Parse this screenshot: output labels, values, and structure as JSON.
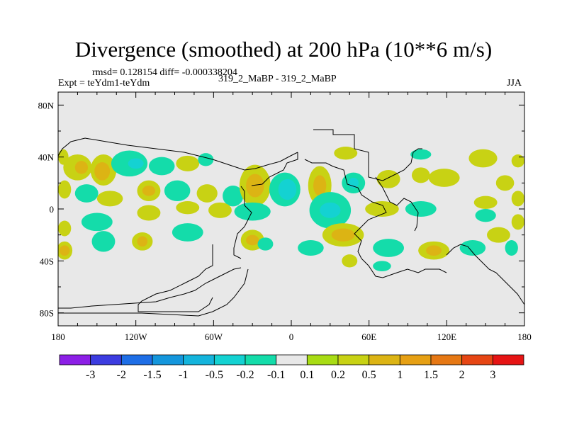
{
  "figure": {
    "title": "Divergence (smoothed) at 200 hPa (10**6 m/s)",
    "stats": "rmsd= 0.128154  diff= -0.000338204",
    "left_label": "Expt = teYdm1-teYdm",
    "center_label": "319_2_MaBP - 319_2_MaBP",
    "right_label": "JJA"
  },
  "chart_data": {
    "type": "heatmap",
    "title": "Divergence (smoothed) at 200 hPa (10**6 m/s)",
    "x_range": [
      -180,
      180
    ],
    "y_range": [
      -90,
      90
    ],
    "x_ticks": [
      {
        "value": -180,
        "label": "180"
      },
      {
        "value": -120,
        "label": "120W"
      },
      {
        "value": -60,
        "label": "60W"
      },
      {
        "value": 0,
        "label": "0"
      },
      {
        "value": 60,
        "label": "60E"
      },
      {
        "value": 120,
        "label": "120E"
      },
      {
        "value": 180,
        "label": "180"
      }
    ],
    "y_ticks": [
      {
        "value": 80,
        "label": "80N"
      },
      {
        "value": 40,
        "label": "40N"
      },
      {
        "value": 0,
        "label": "0"
      },
      {
        "value": -40,
        "label": "40S"
      },
      {
        "value": -80,
        "label": "80S"
      }
    ],
    "colorbar": {
      "colors": [
        "#8c1fe6",
        "#3c3ce0",
        "#1e6ee6",
        "#1496dc",
        "#14b4dc",
        "#14d2d2",
        "#14dcaa",
        "#e8e8e8",
        "#a8dc14",
        "#c8d214",
        "#dcb414",
        "#e6a014",
        "#e67814",
        "#e64614",
        "#e61414"
      ],
      "labels": [
        "-3",
        "-2",
        "-1.5",
        "-1",
        "-0.5",
        "-0.2",
        "-0.1",
        "0.1",
        "0.2",
        "0.5",
        "1",
        "1.5",
        "2",
        "3"
      ]
    },
    "blobs": [
      {
        "lon": -176,
        "lat": 40,
        "w": 4,
        "h": 6,
        "v": 0.2
      },
      {
        "lon": -165,
        "lat": 32,
        "w": 11,
        "h": 10,
        "v": 0.2
      },
      {
        "lon": -162,
        "lat": 32,
        "w": 5,
        "h": 5,
        "v": 0.5
      },
      {
        "lon": -145,
        "lat": 30,
        "w": 10,
        "h": 12,
        "v": 0.2
      },
      {
        "lon": -146,
        "lat": 29,
        "w": 6,
        "h": 7,
        "v": 0.5
      },
      {
        "lon": -125,
        "lat": 35,
        "w": 14,
        "h": 10,
        "v": -0.2
      },
      {
        "lon": -120,
        "lat": 35,
        "w": 6,
        "h": 4,
        "v": -0.5
      },
      {
        "lon": -100,
        "lat": 33,
        "w": 10,
        "h": 7,
        "v": -0.2
      },
      {
        "lon": -80,
        "lat": 35,
        "w": 9,
        "h": 6,
        "v": 0.2
      },
      {
        "lon": -66,
        "lat": 38,
        "w": 6,
        "h": 5,
        "v": -0.2
      },
      {
        "lon": -175,
        "lat": 15,
        "w": 5,
        "h": 7,
        "v": 0.2
      },
      {
        "lon": -158,
        "lat": 12,
        "w": 9,
        "h": 7,
        "v": -0.2
      },
      {
        "lon": -140,
        "lat": 8,
        "w": 10,
        "h": 6,
        "v": 0.2
      },
      {
        "lon": -110,
        "lat": 14,
        "w": 9,
        "h": 8,
        "v": 0.2
      },
      {
        "lon": -110,
        "lat": 14,
        "w": 5,
        "h": 4,
        "v": 0.5
      },
      {
        "lon": -88,
        "lat": 14,
        "w": 10,
        "h": 8,
        "v": -0.2
      },
      {
        "lon": -65,
        "lat": 12,
        "w": 8,
        "h": 7,
        "v": 0.2
      },
      {
        "lon": -45,
        "lat": 10,
        "w": 8,
        "h": 8,
        "v": -0.2
      },
      {
        "lon": -28,
        "lat": 18,
        "w": 12,
        "h": 16,
        "v": 0.2
      },
      {
        "lon": -28,
        "lat": 18,
        "w": 7,
        "h": 9,
        "v": 0.5
      },
      {
        "lon": -5,
        "lat": 15,
        "w": 12,
        "h": 13,
        "v": -0.2
      },
      {
        "lon": -3,
        "lat": 15,
        "w": 7,
        "h": 8,
        "v": -0.5
      },
      {
        "lon": 22,
        "lat": 18,
        "w": 9,
        "h": 15,
        "v": 0.2
      },
      {
        "lon": 22,
        "lat": 18,
        "w": 5,
        "h": 8,
        "v": 0.5
      },
      {
        "lon": 42,
        "lat": 43,
        "w": 9,
        "h": 5,
        "v": 0.2
      },
      {
        "lon": 48,
        "lat": 20,
        "w": 9,
        "h": 8,
        "v": -0.2
      },
      {
        "lon": 48,
        "lat": 20,
        "w": 4,
        "h": 4,
        "v": -0.5
      },
      {
        "lon": 75,
        "lat": 23,
        "w": 9,
        "h": 7,
        "v": 0.2
      },
      {
        "lon": 100,
        "lat": 26,
        "w": 7,
        "h": 6,
        "v": 0.2
      },
      {
        "lon": 100,
        "lat": 42,
        "w": 8,
        "h": 4,
        "v": -0.2
      },
      {
        "lon": 118,
        "lat": 24,
        "w": 12,
        "h": 7,
        "v": 0.2
      },
      {
        "lon": 148,
        "lat": 39,
        "w": 11,
        "h": 7,
        "v": 0.2
      },
      {
        "lon": 165,
        "lat": 20,
        "w": 7,
        "h": 6,
        "v": 0.2
      },
      {
        "lon": 175,
        "lat": 37,
        "w": 5,
        "h": 5,
        "v": 0.2
      },
      {
        "lon": 175,
        "lat": 8,
        "w": 5,
        "h": 6,
        "v": 0.2
      },
      {
        "lon": 150,
        "lat": 5,
        "w": 9,
        "h": 5,
        "v": 0.2
      },
      {
        "lon": 100,
        "lat": 0,
        "w": 12,
        "h": 6,
        "v": -0.2
      },
      {
        "lon": 70,
        "lat": 0,
        "w": 13,
        "h": 6,
        "v": 0.2
      },
      {
        "lon": 30,
        "lat": -1,
        "w": 16,
        "h": 14,
        "v": -0.2
      },
      {
        "lon": 30,
        "lat": -1,
        "w": 8,
        "h": 6,
        "v": -0.5
      },
      {
        "lon": -30,
        "lat": -2,
        "w": 14,
        "h": 7,
        "v": -0.2
      },
      {
        "lon": -55,
        "lat": -1,
        "w": 9,
        "h": 6,
        "v": 0.2
      },
      {
        "lon": -80,
        "lat": 1,
        "w": 9,
        "h": 5,
        "v": 0.2
      },
      {
        "lon": -110,
        "lat": -3,
        "w": 9,
        "h": 6,
        "v": 0.2
      },
      {
        "lon": -150,
        "lat": -10,
        "w": 12,
        "h": 7,
        "v": -0.2
      },
      {
        "lon": -175,
        "lat": -15,
        "w": 5,
        "h": 6,
        "v": 0.2
      },
      {
        "lon": -175,
        "lat": -32,
        "w": 6,
        "h": 7,
        "v": 0.2
      },
      {
        "lon": -175,
        "lat": -32,
        "w": 4,
        "h": 4,
        "v": 0.5
      },
      {
        "lon": -145,
        "lat": -25,
        "w": 9,
        "h": 8,
        "v": -0.2
      },
      {
        "lon": -115,
        "lat": -25,
        "w": 8,
        "h": 7,
        "v": 0.2
      },
      {
        "lon": -115,
        "lat": -25,
        "w": 4,
        "h": 4,
        "v": 0.5
      },
      {
        "lon": -80,
        "lat": -18,
        "w": 12,
        "h": 7,
        "v": -0.2
      },
      {
        "lon": -30,
        "lat": -24,
        "w": 9,
        "h": 8,
        "v": 0.2
      },
      {
        "lon": -30,
        "lat": -24,
        "w": 5,
        "h": 4,
        "v": 0.5
      },
      {
        "lon": -20,
        "lat": -27,
        "w": 6,
        "h": 5,
        "v": -0.2
      },
      {
        "lon": 40,
        "lat": -20,
        "w": 16,
        "h": 9,
        "v": 0.2
      },
      {
        "lon": 40,
        "lat": -20,
        "w": 9,
        "h": 5,
        "v": 0.5
      },
      {
        "lon": 15,
        "lat": -30,
        "w": 10,
        "h": 6,
        "v": -0.2
      },
      {
        "lon": 75,
        "lat": -30,
        "w": 12,
        "h": 7,
        "v": -0.2
      },
      {
        "lon": 110,
        "lat": -32,
        "w": 12,
        "h": 7,
        "v": 0.2
      },
      {
        "lon": 110,
        "lat": -32,
        "w": 6,
        "h": 4,
        "v": 0.5
      },
      {
        "lon": 140,
        "lat": -30,
        "w": 10,
        "h": 6,
        "v": -0.2
      },
      {
        "lon": 160,
        "lat": -20,
        "w": 9,
        "h": 6,
        "v": 0.2
      },
      {
        "lon": 170,
        "lat": -30,
        "w": 5,
        "h": 6,
        "v": -0.2
      },
      {
        "lon": 150,
        "lat": -5,
        "w": 8,
        "h": 5,
        "v": -0.2
      },
      {
        "lon": 175,
        "lat": -10,
        "w": 5,
        "h": 6,
        "v": 0.2
      },
      {
        "lon": 45,
        "lat": -40,
        "w": 6,
        "h": 5,
        "v": 0.2
      },
      {
        "lon": 70,
        "lat": -44,
        "w": 7,
        "h": 4,
        "v": -0.2
      }
    ]
  }
}
